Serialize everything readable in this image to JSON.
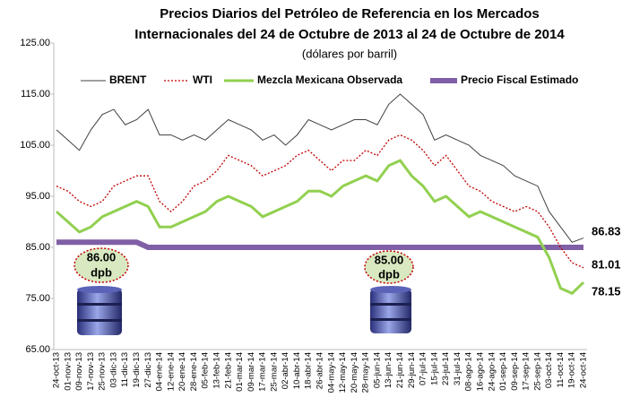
{
  "chart_data": {
    "type": "line",
    "title": [
      "Precios Diarios del Petróleo de Referencia en los Mercados",
      "Internacionales del 24 de Octubre de 2013 al 24 de Octubre de 2014"
    ],
    "subtitle": "(dólares por barril)",
    "categories": [
      "24-oct-13",
      "01-nov-13",
      "09-nov-13",
      "17-nov-13",
      "25-nov-13",
      "03-dic-13",
      "11-dic-13",
      "19-dic-13",
      "27-dic-13",
      "04-ene-14",
      "12-ene-14",
      "20-ene-14",
      "28-ene-14",
      "05-feb-14",
      "13-feb-14",
      "21-feb-14",
      "01-mar-14",
      "09-mar-14",
      "17-mar-14",
      "25-mar-14",
      "02-abr-14",
      "10-abr-14",
      "18-abr-14",
      "26-abr-14",
      "04-may-14",
      "12-may-14",
      "20-may-14",
      "28-may-14",
      "05-jun-14",
      "13-jun-14",
      "21-jun-14",
      "29-jun-14",
      "07-jul-14",
      "15-jul-14",
      "23-jul-14",
      "31-jul-14",
      "08-ago-14",
      "16-ago-14",
      "24-ago-14",
      "01-sep-14",
      "09-sep-14",
      "17-sep-14",
      "25-sep-14",
      "03-oct-14",
      "11-oct-14",
      "19-oct-14",
      "24-oct-14"
    ],
    "series": [
      {
        "name": "BRENT",
        "color": "#404040",
        "values": [
          108,
          106,
          104,
          108,
          111,
          112,
          109,
          110,
          112,
          107,
          107,
          106,
          107,
          106,
          108,
          110,
          109,
          108,
          106,
          107,
          105,
          107,
          110,
          109,
          108,
          109,
          110,
          110,
          109,
          113,
          115,
          113,
          111,
          106,
          107,
          106,
          105,
          103,
          102,
          101,
          99,
          98,
          97,
          92,
          89,
          86,
          86.83
        ]
      },
      {
        "name": "WTI",
        "color": "#c00000",
        "values": [
          97,
          96,
          94,
          93,
          94,
          97,
          98,
          99,
          99,
          94,
          92,
          94,
          97,
          98,
          100,
          103,
          102,
          101,
          99,
          100,
          101,
          103,
          104,
          102,
          100,
          102,
          102,
          104,
          103,
          106,
          107,
          106,
          104,
          101,
          103,
          100,
          97,
          96,
          94,
          93,
          92,
          93,
          92,
          89,
          85,
          82,
          81.01
        ]
      },
      {
        "name": "Mezcla Mexicana Observada",
        "color": "#92d050",
        "values": [
          92,
          90,
          88,
          89,
          91,
          92,
          93,
          94,
          93,
          89,
          89,
          90,
          91,
          92,
          94,
          95,
          94,
          93,
          91,
          92,
          93,
          94,
          96,
          96,
          95,
          97,
          98,
          99,
          98,
          101,
          102,
          99,
          97,
          94,
          95,
          93,
          91,
          92,
          91,
          90,
          89,
          88,
          87,
          83,
          77,
          76,
          78.15
        ]
      },
      {
        "name": "Precio Fiscal Estimado",
        "color": "#7f5fa5",
        "values": [
          86,
          86,
          86,
          86,
          86,
          86,
          86,
          86,
          85,
          85,
          85,
          85,
          85,
          85,
          85,
          85,
          85,
          85,
          85,
          85,
          85,
          85,
          85,
          85,
          85,
          85,
          85,
          85,
          85,
          85,
          85,
          85,
          85,
          85,
          85,
          85,
          85,
          85,
          85,
          85,
          85,
          85,
          85,
          85,
          85,
          85,
          85
        ]
      }
    ],
    "annotations": [
      {
        "value": "86.00",
        "unit": "dpb"
      },
      {
        "value": "85.00",
        "unit": "dpb"
      }
    ],
    "ylim": [
      65,
      125
    ],
    "yticks": [
      {
        "value": 65,
        "label": "65.00"
      },
      {
        "value": 75,
        "label": "75.00"
      },
      {
        "value": 85,
        "label": "85.00"
      },
      {
        "value": 95,
        "label": "95.00"
      },
      {
        "value": 105,
        "label": "105.00"
      },
      {
        "value": 115,
        "label": "115.00"
      },
      {
        "value": 125,
        "label": "125.00"
      }
    ],
    "grid": false
  }
}
